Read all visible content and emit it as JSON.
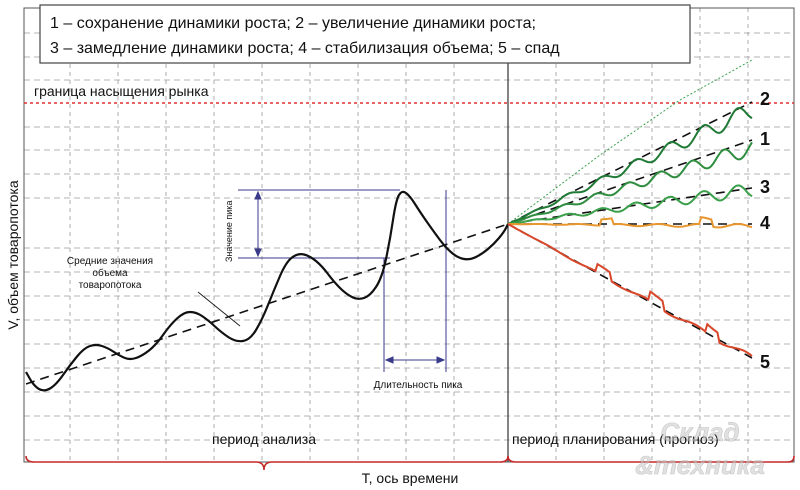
{
  "legend": {
    "line1": "1 – сохранение динамики роста; 2 – увеличение динамики роста;",
    "line2": "3 – замедление динамики роста; 4 – стабилизация объема; 5 – спад"
  },
  "saturation_label": "граница насыщения рынка",
  "axes": {
    "ylabel": "V, объем товаропотока",
    "xlabel": "T, ось времени"
  },
  "periods": {
    "analysis": "период анализа",
    "planning": "период планирования (прогноз)"
  },
  "annotations": {
    "peak_value": "Значение пика",
    "mean_values_1": "Средние значения",
    "mean_values_2": "объема",
    "mean_values_3": "товаропотока",
    "peak_duration": "Длительность пика"
  },
  "scenario_numbers": [
    "2",
    "1",
    "3",
    "4",
    "5"
  ],
  "watermark": {
    "line1": "Склад",
    "line2": "&техника"
  },
  "colors": {
    "saturation_line": "#e03030",
    "scenario_green_dark": "#1f7a35",
    "scenario_green_light": "#3aa04a",
    "scenario_orange": "#e8962e",
    "scenario_red": "#d9472b",
    "bracket_red": "#c62828",
    "peak_markers": "#3a3a8a"
  }
}
